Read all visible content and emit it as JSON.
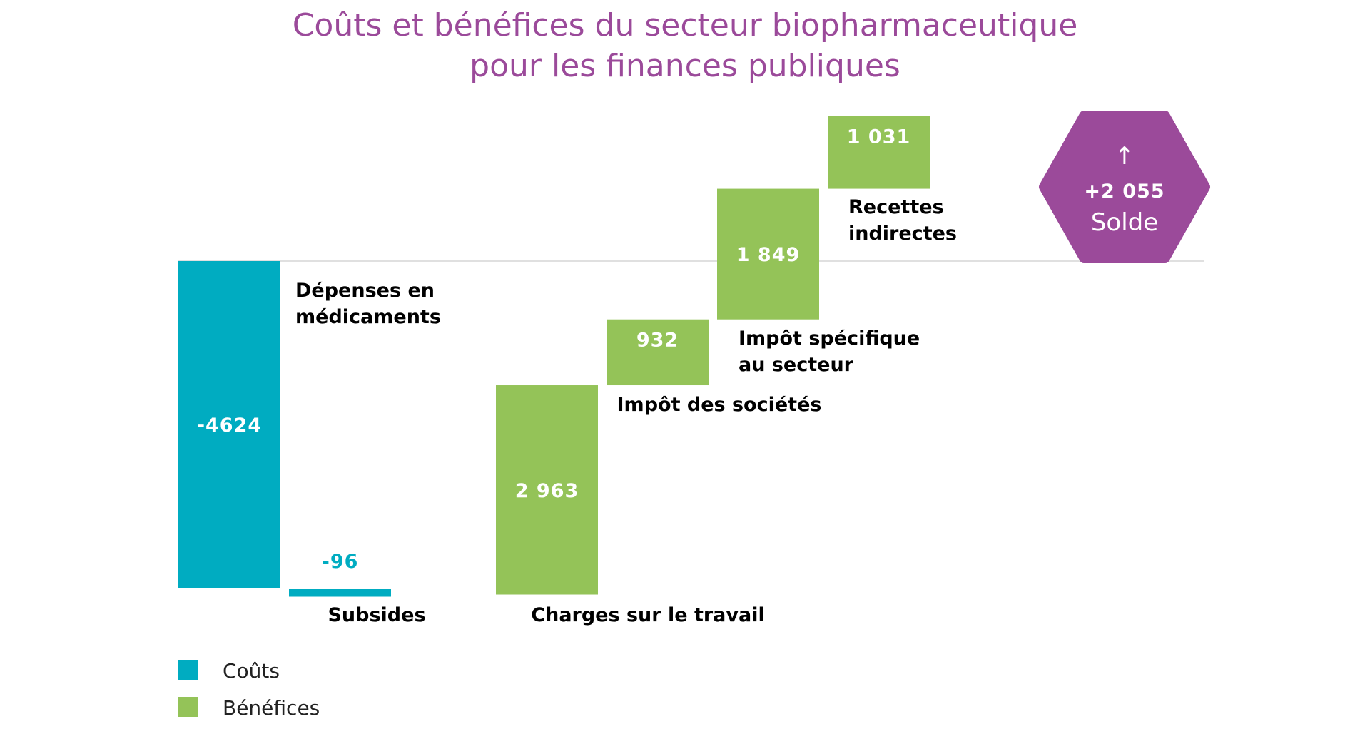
{
  "colors": {
    "title": "#9b4a9a",
    "costs": "#00acc1",
    "benefits": "#94c358",
    "hexagon": "#9b4a9a",
    "zero_line": "#e0e0e0"
  },
  "chart_data": {
    "type": "waterfall",
    "title_lines": [
      "Coûts et bénéfices du secteur biopharmaceutique",
      "pour les finances publiques"
    ],
    "steps": [
      {
        "label_lines": [
          "Dépenses en",
          "médicaments"
        ],
        "value": -4624,
        "value_label": "-4624",
        "kind": "cost"
      },
      {
        "label_lines": [
          "Subsides"
        ],
        "value": -96,
        "value_label": "-96",
        "kind": "cost"
      },
      {
        "label_lines": [
          "Charges sur le travail"
        ],
        "value": 2963,
        "value_label": "2 963",
        "kind": "benefit"
      },
      {
        "label_lines": [
          "Impôt des sociétés"
        ],
        "value": 932,
        "value_label": "932",
        "kind": "benefit"
      },
      {
        "label_lines": [
          "Impôt spécifique",
          "au secteur"
        ],
        "value": 1849,
        "value_label": "1 849",
        "kind": "benefit"
      },
      {
        "label_lines": [
          "Recettes",
          "indirectes"
        ],
        "value": 1031,
        "value_label": "1 031",
        "kind": "benefit"
      }
    ],
    "total": {
      "value": 2055,
      "value_label": "+2 055",
      "label": "Solde",
      "icon": "arrow-up-icon",
      "symbol": "↑"
    },
    "legend": [
      {
        "label": "Coûts",
        "kind": "cost"
      },
      {
        "label": "Bénéfices",
        "kind": "benefit"
      }
    ]
  }
}
